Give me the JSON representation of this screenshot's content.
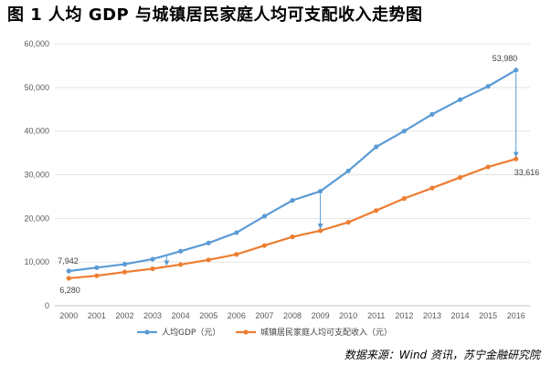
{
  "chart_data": {
    "type": "line",
    "title": "图 1 人均 GDP 与城镇居民家庭人均可支配收入走势图",
    "categories": [
      "2000",
      "2001",
      "2002",
      "2003",
      "2004",
      "2005",
      "2006",
      "2007",
      "2008",
      "2009",
      "2010",
      "2011",
      "2012",
      "2013",
      "2014",
      "2015",
      "2016"
    ],
    "series": [
      {
        "name": "人均GDP（元）",
        "color": "#5b9bd5",
        "values": [
          7942,
          8717,
          9506,
          10666,
          12487,
          14368,
          16738,
          20505,
          24121,
          26222,
          30876,
          36403,
          40007,
          43852,
          47203,
          50251,
          53980
        ]
      },
      {
        "name": "城镇居民家庭人均可支配收入（元）",
        "color": "#ed7d31",
        "values": [
          6280,
          6860,
          7703,
          8472,
          9422,
          10493,
          11759,
          13786,
          15781,
          17175,
          19109,
          21810,
          24565,
          26955,
          29381,
          31790,
          33616
        ]
      }
    ],
    "y_ticks": [
      "0",
      "10,000",
      "20,000",
      "30,000",
      "40,000",
      "50,000",
      "60,000"
    ],
    "ylim": [
      0,
      60000
    ],
    "annotations": {
      "gdp_start": "7,942",
      "income_start": "6,280",
      "gdp_end": "53,980",
      "income_end": "33,616"
    },
    "legend_position": "bottom"
  },
  "source": "数据来源：Wind 资讯，苏宁金融研究院"
}
